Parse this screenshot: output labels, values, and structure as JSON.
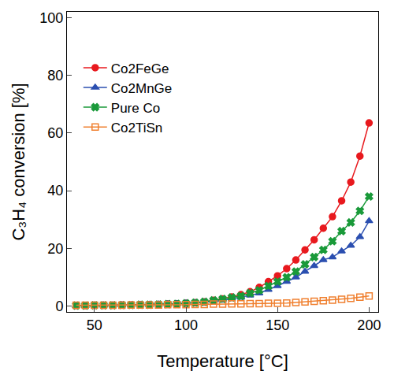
{
  "chart_data": {
    "type": "line",
    "x_label": "Temperature [°C]",
    "y_label": "C₃H₄ conversion [%]",
    "x": [
      40,
      45,
      50,
      55,
      60,
      65,
      70,
      75,
      80,
      85,
      90,
      95,
      100,
      105,
      110,
      115,
      120,
      125,
      130,
      135,
      140,
      145,
      150,
      155,
      160,
      165,
      170,
      175,
      180,
      185,
      190,
      195,
      200
    ],
    "series": [
      {
        "name": "Co2FeGe",
        "color": "#e8191e",
        "marker": "circle",
        "values": [
          0.2,
          0.2,
          0.3,
          0.3,
          0.3,
          0.4,
          0.4,
          0.5,
          0.5,
          0.6,
          0.7,
          0.8,
          1,
          1.2,
          1.5,
          2,
          2.5,
          3.2,
          4,
          5,
          6.5,
          8.5,
          10.5,
          13,
          16,
          19.5,
          23,
          27,
          31,
          36.5,
          43,
          52,
          63.5
        ]
      },
      {
        "name": "Co2MnGe",
        "color": "#2b4fb0",
        "marker": "triangle-up",
        "values": [
          0.2,
          0.2,
          0.3,
          0.3,
          0.3,
          0.4,
          0.4,
          0.5,
          0.5,
          0.6,
          0.7,
          0.8,
          1,
          1.1,
          1.3,
          1.6,
          2,
          2.5,
          3,
          3.7,
          4.5,
          5.7,
          7,
          8.5,
          10,
          12,
          14,
          16,
          17,
          19,
          21,
          24,
          29.5
        ]
      },
      {
        "name": "Pure Co",
        "color": "#1a9a3a",
        "marker": "x",
        "values": [
          0.2,
          0.2,
          0.3,
          0.3,
          0.3,
          0.4,
          0.4,
          0.5,
          0.5,
          0.6,
          0.7,
          0.8,
          1,
          1.2,
          1.5,
          2,
          2.5,
          3,
          3.5,
          4.5,
          5.5,
          7,
          8.5,
          10,
          12,
          14.5,
          17,
          19.5,
          22.5,
          26,
          29,
          33,
          38
        ]
      },
      {
        "name": "Co2TiSn",
        "color": "#f08030",
        "marker": "square-open",
        "values": [
          0.3,
          0.3,
          0.3,
          0.3,
          0.3,
          0.3,
          0.4,
          0.4,
          0.4,
          0.4,
          0.5,
          0.5,
          0.5,
          0.6,
          0.6,
          0.7,
          0.7,
          0.8,
          0.8,
          0.9,
          0.9,
          1,
          1,
          1.1,
          1.3,
          1.5,
          1.7,
          1.9,
          2.1,
          2.4,
          2.7,
          3.1,
          3.5
        ]
      }
    ],
    "xlim": [
      35,
      205
    ],
    "xticks": [
      50,
      100,
      150,
      200
    ],
    "ylim": [
      -2,
      102
    ],
    "yticks": [
      0,
      20,
      40,
      60,
      80,
      100
    ],
    "grid": false,
    "legend": "top left"
  }
}
